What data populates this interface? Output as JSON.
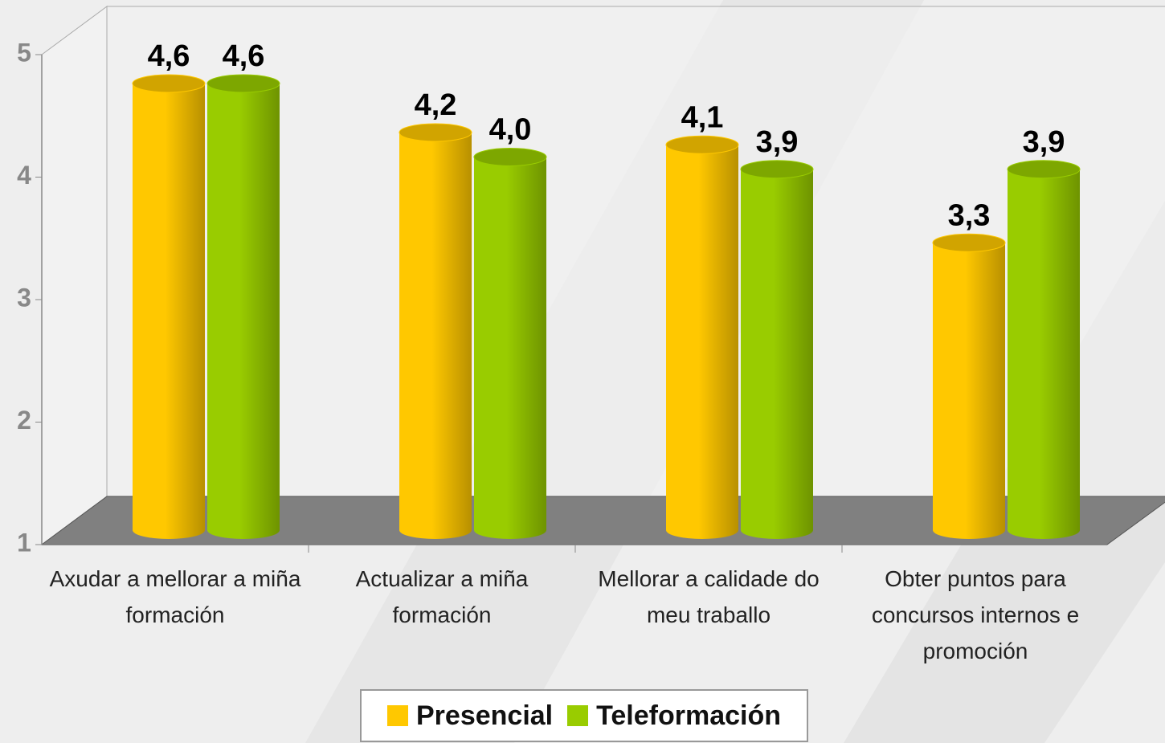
{
  "chart_data": {
    "type": "bar3d",
    "categories": [
      "Axudar a mellorar a miña formación",
      "Actualizar a miña formación",
      "Mellorar a calidade do meu traballo",
      "Obter puntos para concursos internos e promoción"
    ],
    "series": [
      {
        "name": "Presencial",
        "color": "#ffc800",
        "values": [
          4.6,
          4.2,
          4.1,
          3.3
        ],
        "value_labels": [
          "4,6",
          "4,2",
          "4,1",
          "3,3"
        ]
      },
      {
        "name": "Teleformación",
        "color": "#99cc00",
        "values": [
          4.6,
          4.0,
          3.9,
          3.9
        ],
        "value_labels": [
          "4,6",
          "4,0",
          "3,9",
          "3,9"
        ]
      }
    ],
    "ylim": [
      1,
      5
    ],
    "yticks": [
      1,
      2,
      3,
      4,
      5
    ],
    "grid": false,
    "legend": "bottom"
  }
}
